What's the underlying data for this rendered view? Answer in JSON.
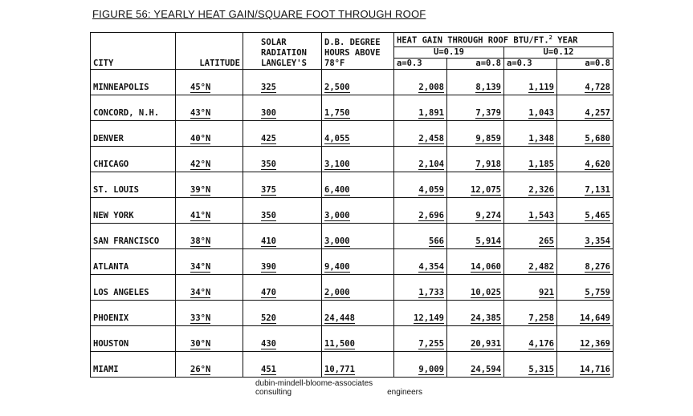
{
  "title": "FIGURE 56:  YEARLY HEAT GAIN/SQUARE FOOT THROUGH ROOF",
  "headers": {
    "city": "CITY",
    "latitude": "LATITUDE",
    "solar_1": "SOLAR",
    "solar_2": "RADIATION",
    "solar_3": "LANGLEY'S",
    "db_1": "D.B. DEGREE",
    "db_2": "HOURS ABOVE",
    "db_3": "78°F",
    "heat_gain": "HEAT GAIN THROUGH ROOF BTU/FT.",
    "heat_gain_sup": "2",
    "heat_gain_unit": "YEAR",
    "u1": "U=0.19",
    "u2": "U=0.12",
    "a1": "a=0.3",
    "a2": "a=0.8",
    "a3": "a=0.3",
    "a4": "a=0.8"
  },
  "rows": [
    [
      "MINNEAPOLIS",
      "45°N",
      "325",
      "2,500",
      "2,008",
      "8,139",
      "1,119",
      "4,728"
    ],
    [
      "CONCORD, N.H.",
      "43°N",
      "300",
      "1,750",
      "1,891",
      "7,379",
      "1,043",
      "4,257"
    ],
    [
      "DENVER",
      "40°N",
      "425",
      "4,055",
      "2,458",
      "9,859",
      "1,348",
      "5,680"
    ],
    [
      "CHICAGO",
      "42°N",
      "350",
      "3,100",
      "2,104",
      "7,918",
      "1,185",
      "4,620"
    ],
    [
      "ST. LOUIS",
      "39°N",
      "375",
      "6,400",
      "4,059",
      "12,075",
      "2,326",
      "7,131"
    ],
    [
      "NEW YORK",
      "41°N",
      "350",
      "3,000",
      "2,696",
      "9,274",
      "1,543",
      "5,465"
    ],
    [
      "SAN FRANCISCO",
      "38°N",
      "410",
      "3,000",
      "566",
      "5,914",
      "265",
      "3,354"
    ],
    [
      "ATLANTA",
      "34°N",
      "390",
      "9,400",
      "4,354",
      "14,060",
      "2,482",
      "8,276"
    ],
    [
      "LOS ANGELES",
      "34°N",
      "470",
      "2,000",
      "1,733",
      "10,025",
      "921",
      "5,759"
    ],
    [
      "PHOENIX",
      "33°N",
      "520",
      "24,448",
      "12,149",
      "24,385",
      "7,258",
      "14,649"
    ],
    [
      "HOUSTON",
      "30°N",
      "430",
      "11,500",
      "7,255",
      "20,931",
      "4,176",
      "12,369"
    ],
    [
      "MIAMI",
      "26°N",
      "451",
      "10,771",
      "9,009",
      "24,594",
      "5,315",
      "14,716"
    ]
  ],
  "footer": {
    "line1": "dubin-mindell-bloome-associates",
    "line2_left": "consulting",
    "line2_right": "engineers"
  }
}
